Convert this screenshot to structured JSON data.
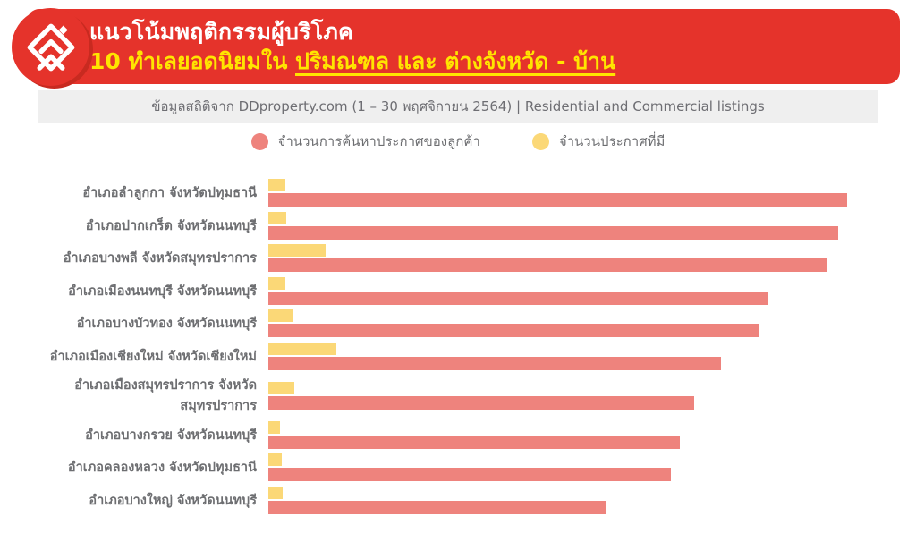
{
  "header": {
    "title": "แนวโน้มพฤติกรรมผู้บริโภค",
    "subtitle_prefix": "10 ทำเลยอดนิยมใน ",
    "subtitle_underline": "ปริมณฑล และ ต่างจังหวัด - บ้าน"
  },
  "source_note": "ข้อมูลสถิติจาก DDproperty.com (1 – 30 พฤศจิกายน 2564) | Residential and Commercial listings",
  "legend": [
    {
      "label": "จำนวนการค้นหาประกาศของลูกค้า",
      "color": "#EE837D"
    },
    {
      "label": "จำนวนประกาศที่มี",
      "color": "#FBD877"
    }
  ],
  "chart_data": {
    "type": "bar",
    "orientation": "horizontal",
    "value_axis_visible": false,
    "value_scale": "relative index, longest bar = 100",
    "xlim": [
      0,
      100
    ],
    "grid": false,
    "legend_position": "top-center",
    "categories": [
      "อำเภอลำลูกกา จังหวัดปทุมธานี",
      "อำเภอปากเกร็ด จังหวัดนนทบุรี",
      "อำเภอบางพลี จังหวัดสมุทรปราการ",
      "อำเภอเมืองนนทบุรี จังหวัดนนทบุรี",
      "อำเภอบางบัวทอง จังหวัดนนทบุรี",
      "อำเภอเมืองเชียงใหม่ จังหวัดเชียงใหม่",
      "อำเภอเมืองสมุทรปราการ จังหวัดสมุทรปราการ",
      "อำเภอบางกรวย จังหวัดนนทบุรี",
      "อำเภอคลองหลวง จังหวัดปทุมธานี",
      "อำเภอบางใหญ่ จังหวัดนนทบุรี"
    ],
    "series": [
      {
        "name": "จำนวนการค้นหาประกาศของลูกค้า",
        "color": "#EE837D",
        "values": [
          100,
          98.5,
          96.6,
          86.3,
          84.7,
          78.2,
          73.6,
          71.1,
          69.6,
          58.4
        ]
      },
      {
        "name": "จำนวนประกาศที่มี",
        "color": "#FBD877",
        "values": [
          3.0,
          3.1,
          9.9,
          3.0,
          4.3,
          11.7,
          4.5,
          2.0,
          2.3,
          2.5
        ]
      }
    ]
  },
  "colors": {
    "banner_red": "#E5332B",
    "banner_shadow_red": "#C82A20",
    "highlight_yellow": "#FFE500",
    "bar_red": "#EE837D",
    "bar_yellow": "#FBD877",
    "band_bg": "#EFEFEF",
    "text_gray": "#6D6E71"
  }
}
